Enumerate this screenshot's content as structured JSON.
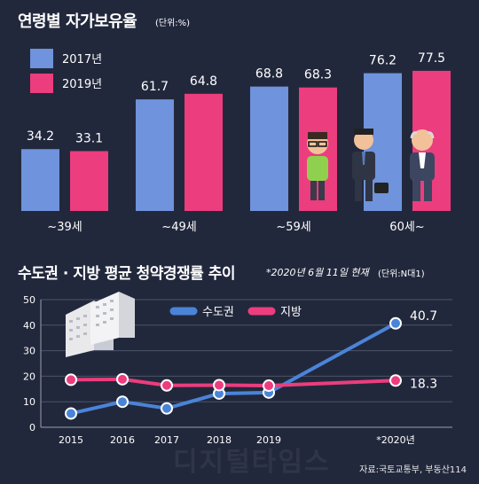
{
  "chart_data": [
    {
      "type": "bar",
      "title": "연령별 자가보유율",
      "unit": "(단위:%)",
      "categories": [
        "~39세",
        "~49세",
        "~59세",
        "60세~"
      ],
      "series": [
        {
          "name": "2017년",
          "color": "#6f93dc",
          "values": [
            34.2,
            61.7,
            68.8,
            76.2
          ]
        },
        {
          "name": "2019년",
          "color": "#ec3d7e",
          "values": [
            33.1,
            64.8,
            68.3,
            77.5
          ]
        }
      ],
      "ylim": [
        0,
        100
      ],
      "legend": "top-left"
    },
    {
      "type": "line",
      "title": "수도권 · 지방 평균 청약경쟁률 추이",
      "note": "*2020년 6월 11일 현재",
      "unit": "(단위:N대1)",
      "x": [
        "2015",
        "2016",
        "2017",
        "2018",
        "2019",
        "*2020년"
      ],
      "series": [
        {
          "name": "수도권",
          "color": "#4a84d8",
          "values": [
            5.4,
            10.0,
            7.4,
            13.2,
            13.6,
            40.7
          ]
        },
        {
          "name": "지방",
          "color": "#ec3d7e",
          "values": [
            18.6,
            18.8,
            16.4,
            16.5,
            16.3,
            18.3
          ]
        }
      ],
      "yticks": [
        0,
        10,
        20,
        30,
        40,
        50
      ],
      "ylim": [
        0,
        50
      ],
      "grid": true,
      "end_labels": [
        "40.7",
        "18.3"
      ],
      "legend": "top-center"
    }
  ],
  "source": "자료:국토교통부, 부동산114",
  "watermark": "디지털타임스"
}
